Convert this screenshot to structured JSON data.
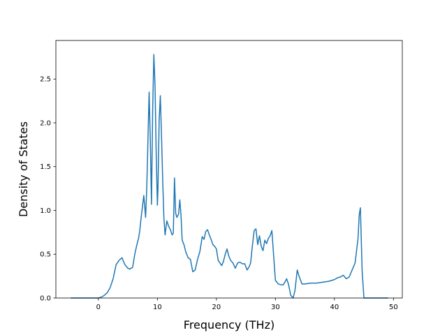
{
  "chart_data": {
    "type": "line",
    "title": "",
    "xlabel": "Frequency (THz)",
    "ylabel": "Density of States",
    "xlim": [
      -7.2,
      51.5
    ],
    "ylim": [
      0,
      2.94
    ],
    "xticks": [
      0,
      10,
      20,
      30,
      40,
      50
    ],
    "xtick_labels": [
      "0",
      "10",
      "20",
      "30",
      "40",
      "50"
    ],
    "yticks": [
      0.0,
      0.5,
      1.0,
      1.5,
      2.0,
      2.5
    ],
    "ytick_labels": [
      "0.0",
      "0.5",
      "1.0",
      "1.5",
      "2.0",
      "2.5"
    ],
    "grid": false,
    "legend": "none",
    "color": "#1f77b4",
    "series": [
      {
        "x": [
          -4.6,
          0,
          0.5,
          1.0,
          1.5,
          2.0,
          2.5,
          3.0,
          3.5,
          4.0,
          4.5,
          5.0,
          5.3,
          5.8,
          6.2,
          6.5,
          6.8,
          7.0,
          7.3,
          7.7,
          8.0,
          8.2,
          8.4,
          8.6,
          8.8,
          9.0,
          9.2,
          9.4,
          9.6,
          9.8,
          10.0,
          10.1,
          10.3,
          10.5,
          10.7,
          10.9,
          11.1,
          11.3,
          11.6,
          11.9,
          12.2,
          12.5,
          12.7,
          12.9,
          13.1,
          13.3,
          13.6,
          13.8,
          14.0,
          14.2,
          14.5,
          14.8,
          15.2,
          15.6,
          16.0,
          16.4,
          16.8,
          17.2,
          17.6,
          17.9,
          18.2,
          18.5,
          18.8,
          19.1,
          19.4,
          19.7,
          20.0,
          20.3,
          20.6,
          20.9,
          21.2,
          21.5,
          21.8,
          22.1,
          22.4,
          22.8,
          23.2,
          23.6,
          24.0,
          24.4,
          24.8,
          25.2,
          25.5,
          25.8,
          26.1,
          26.4,
          26.7,
          27.0,
          27.3,
          27.6,
          27.9,
          28.2,
          28.5,
          28.8,
          29.1,
          29.4,
          30.0,
          30.5,
          31.0,
          31.3,
          31.6,
          31.9,
          32.2,
          32.6,
          33.0,
          33.3,
          33.7,
          34.0,
          34.5,
          35.0,
          36.0,
          37.0,
          38.0,
          39.0,
          40.0,
          40.5,
          41.0,
          41.5,
          42.0,
          42.5,
          43.0,
          43.5,
          44.0,
          44.2,
          44.4,
          44.7,
          45.0,
          45.5,
          49.0
        ],
        "y": [
          0.0,
          0.0,
          0.01,
          0.03,
          0.06,
          0.12,
          0.22,
          0.38,
          0.43,
          0.46,
          0.38,
          0.34,
          0.33,
          0.35,
          0.51,
          0.6,
          0.68,
          0.76,
          0.95,
          1.17,
          0.92,
          1.25,
          1.8,
          2.35,
          1.8,
          1.07,
          2.14,
          2.78,
          2.43,
          1.65,
          1.06,
          1.25,
          2.03,
          2.31,
          1.85,
          1.35,
          0.92,
          0.72,
          0.88,
          0.82,
          0.78,
          0.72,
          0.74,
          1.37,
          0.97,
          0.92,
          0.96,
          1.12,
          0.95,
          0.66,
          0.61,
          0.53,
          0.46,
          0.44,
          0.3,
          0.32,
          0.44,
          0.53,
          0.7,
          0.67,
          0.76,
          0.78,
          0.72,
          0.67,
          0.61,
          0.59,
          0.56,
          0.43,
          0.4,
          0.37,
          0.42,
          0.5,
          0.56,
          0.48,
          0.43,
          0.4,
          0.34,
          0.4,
          0.41,
          0.39,
          0.39,
          0.32,
          0.35,
          0.4,
          0.6,
          0.77,
          0.79,
          0.61,
          0.71,
          0.59,
          0.54,
          0.66,
          0.62,
          0.68,
          0.71,
          0.77,
          0.2,
          0.16,
          0.15,
          0.15,
          0.18,
          0.22,
          0.16,
          0.03,
          0.0,
          0.08,
          0.32,
          0.25,
          0.16,
          0.16,
          0.17,
          0.17,
          0.18,
          0.19,
          0.21,
          0.23,
          0.24,
          0.26,
          0.22,
          0.24,
          0.32,
          0.4,
          0.68,
          0.95,
          1.03,
          0.3,
          0.0,
          0.0,
          0.0
        ]
      }
    ]
  }
}
